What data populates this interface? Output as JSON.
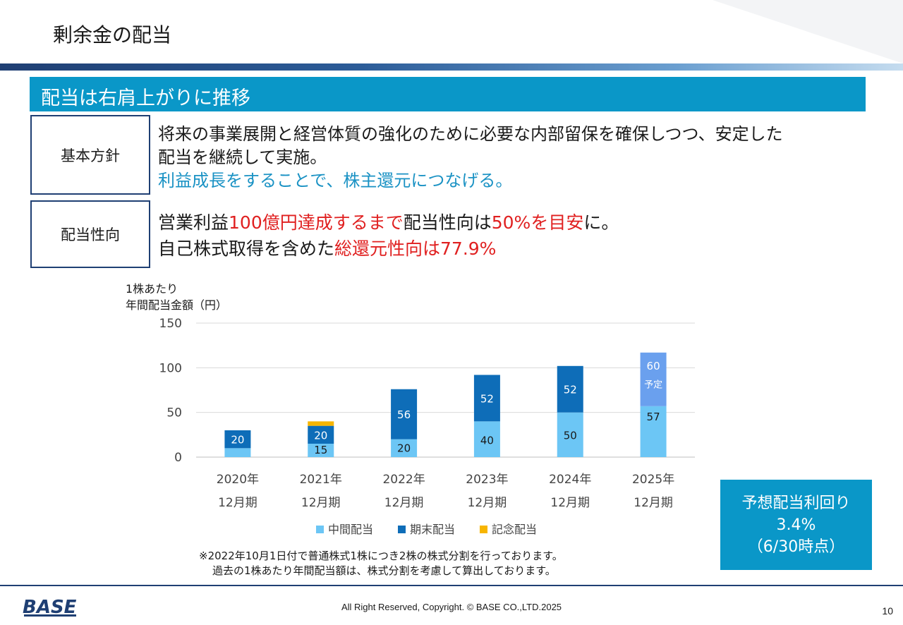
{
  "page": {
    "title": "剰余金の配当",
    "banner": "配当は右肩上がりに推移",
    "page_number": "10",
    "copyright": "All Right Reserved, Copyright. © BASE CO.,LTD.2025",
    "logo_text": "BASE"
  },
  "policy": {
    "label": "基本方針",
    "line1": "将来の事業展開と経営体質の強化のために必要な内部留保を確保しつつ、安定した",
    "line2": "配当を継続して実施。",
    "line3": "利益成長をすることで、株主還元につなげる。"
  },
  "payout": {
    "label": "配当性向",
    "l1a": "営業利益",
    "l1b": "100億円達成するまで",
    "l1c": "配当性向は",
    "l1d": "50%を目安",
    "l1e": "に。",
    "l2a": "自己株式取得を含めた",
    "l2b": "総還元性向は77.9%"
  },
  "colors": {
    "interim": "#6cc6f5",
    "year_end": "#0e6db8",
    "commemorative": "#f7b500",
    "planned": "#6aa0ee",
    "accent": "#0a97c8",
    "navy": "#1f3f73",
    "red": "#e02020"
  },
  "chart_data": {
    "type": "bar",
    "stacked": true,
    "ylabel_line1": "1株あたり",
    "ylabel_line2": "年間配当金額（円）",
    "ylim": [
      0,
      150
    ],
    "yticks": [
      "0",
      "50",
      "100",
      "150"
    ],
    "grid": true,
    "legend_position": "bottom",
    "categories": [
      {
        "year": "2020年",
        "period": "12月期"
      },
      {
        "year": "2021年",
        "period": "12月期"
      },
      {
        "year": "2022年",
        "period": "12月期"
      },
      {
        "year": "2023年",
        "period": "12月期"
      },
      {
        "year": "2024年",
        "period": "12月期"
      },
      {
        "year": "2025年",
        "period": "12月期"
      }
    ],
    "series": [
      {
        "name": "中間配当",
        "values": [
          10,
          15,
          20,
          40,
          50,
          57
        ],
        "labels": [
          "",
          "15",
          "20",
          "40",
          "50",
          "57"
        ]
      },
      {
        "name": "期末配当",
        "values": [
          20,
          20,
          56,
          52,
          52,
          60
        ],
        "labels": [
          "20",
          "20",
          "56",
          "52",
          "52",
          "60"
        ]
      },
      {
        "name": "記念配当",
        "values": [
          0,
          5,
          0,
          0,
          0,
          0
        ],
        "labels": [
          "",
          "",
          "",
          "",
          "",
          ""
        ]
      }
    ],
    "planned_note": "予定"
  },
  "yield_box": {
    "line1": "予想配当利回り",
    "line2": "3.4%",
    "line3": "（6/30時点）"
  },
  "notes": {
    "line1": "※2022年10月1日付で普通株式1株につき2株の株式分割を行っております。",
    "line2": "過去の1株あたり年間配当額は、株式分割を考慮して算出しております。"
  }
}
